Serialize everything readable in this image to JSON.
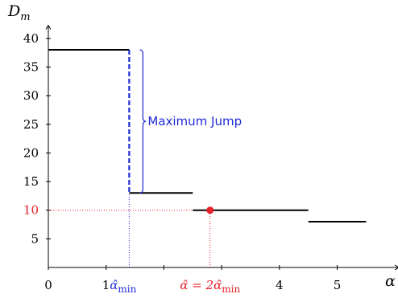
{
  "chart_data": {
    "type": "line",
    "step": true,
    "title": "",
    "xlabel": "α",
    "ylabel": "D",
    "ylabel_subscript": "m",
    "xlim": [
      0,
      5.9
    ],
    "ylim": [
      0,
      42
    ],
    "x_ticks": [
      0,
      1,
      4,
      5
    ],
    "y_ticks": [
      5,
      10,
      15,
      20,
      25,
      30,
      35,
      40
    ],
    "highlight_y_tick": 10,
    "minor_x_ticks": [
      2,
      3
    ],
    "grid": false,
    "series": [
      {
        "segments": [
          {
            "x": [
              0,
              1.4
            ],
            "y": 38
          },
          {
            "x": [
              1.4,
              2.5
            ],
            "y": 13
          },
          {
            "x": [
              2.5,
              4.5
            ],
            "y": 10
          },
          {
            "x": [
              4.5,
              5.5
            ],
            "y": 8
          }
        ]
      }
    ],
    "jump": {
      "x": 1.4,
      "from": 38,
      "to": 13,
      "label": "Maximum Jump"
    },
    "alpha_min": {
      "x": 1.4,
      "label_prefix": "1",
      "label": "α̂",
      "label_subscript": "min"
    },
    "alpha_hat": {
      "x": 2.8,
      "y": 10,
      "label": "α̂ = 2α̂",
      "label_subscript": "min"
    },
    "colors": {
      "main": "#000000",
      "jump": "#1f2ad6",
      "alpha_min": "#1f2ad6",
      "alpha_hat": "#e8202a"
    }
  }
}
